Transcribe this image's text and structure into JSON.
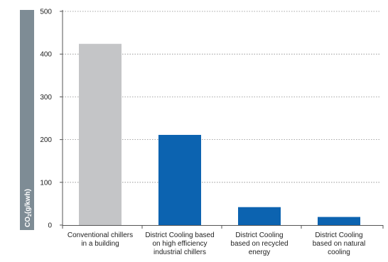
{
  "chart_data": {
    "type": "bar",
    "categories": [
      [
        "Conventional chillers",
        "in a building"
      ],
      [
        "District Cooling based",
        "on high efficiency",
        "industrial chillers"
      ],
      [
        "District Cooling",
        "based on recycled",
        "energy"
      ],
      [
        "District Cooling",
        "based on natural",
        "cooling"
      ]
    ],
    "values": [
      424,
      211,
      42,
      19
    ],
    "ylabel": "CO2(g/kwh)",
    "ylabel_main": "CO",
    "ylabel_sub": "2",
    "ylabel_rest": "(g/kwh)",
    "ylim": [
      0,
      500
    ],
    "yticks": [
      0,
      100,
      200,
      300,
      400,
      500
    ],
    "grid": true,
    "bar_colors": [
      "#c4c5c7",
      "#0c63b0",
      "#0c63b0",
      "#0c63b0"
    ],
    "axis_band_color": "#7e8c95"
  }
}
